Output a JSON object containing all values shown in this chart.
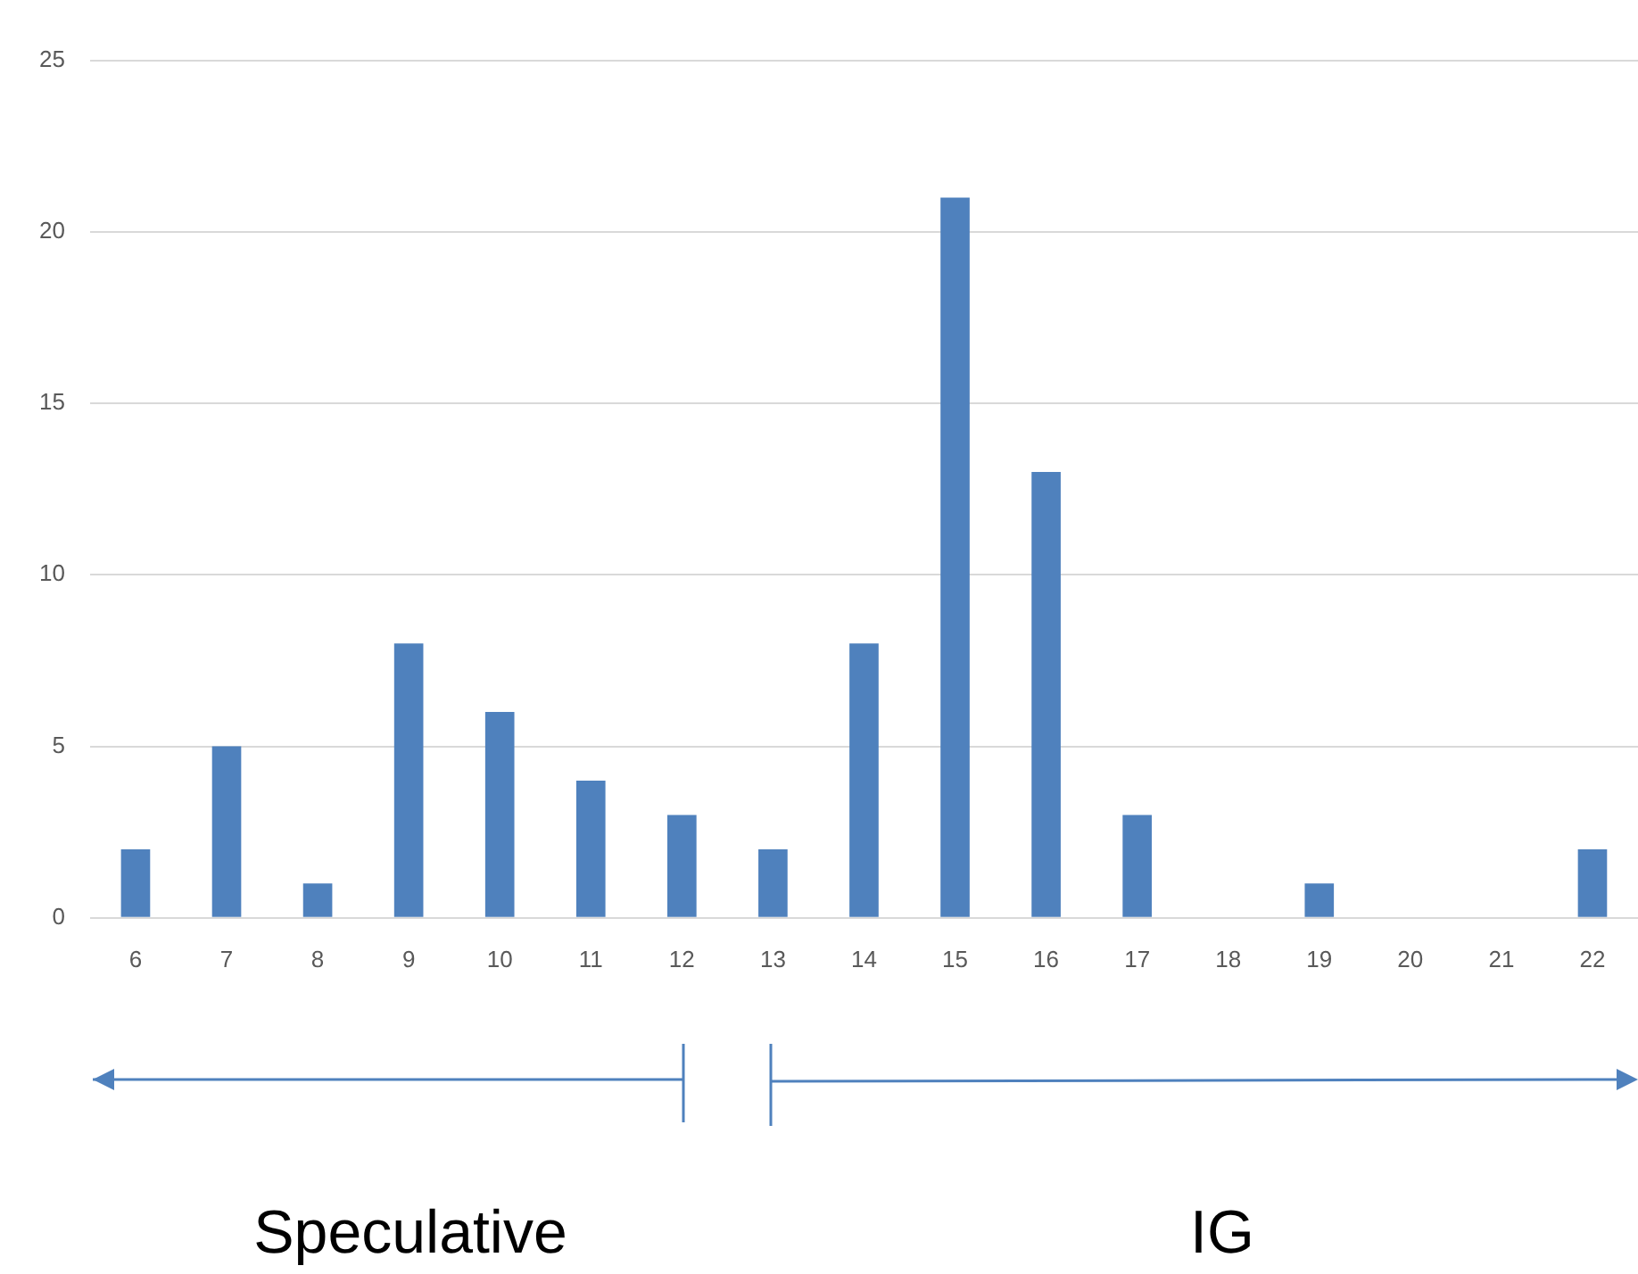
{
  "chart_data": {
    "type": "bar",
    "categories": [
      "6",
      "7",
      "8",
      "9",
      "10",
      "11",
      "12",
      "13",
      "14",
      "15",
      "16",
      "17",
      "18",
      "19",
      "20",
      "21",
      "22"
    ],
    "values": [
      2,
      5,
      1,
      8,
      6,
      4,
      3,
      2,
      8,
      21,
      13,
      3,
      0,
      1,
      0,
      0,
      2
    ],
    "color": "#4f81bd",
    "ylim": [
      0,
      25
    ],
    "yticks": [
      0,
      5,
      10,
      15,
      20,
      25
    ],
    "grid": "y",
    "legend": false,
    "annotations": [
      "Speculative",
      "IG"
    ]
  }
}
